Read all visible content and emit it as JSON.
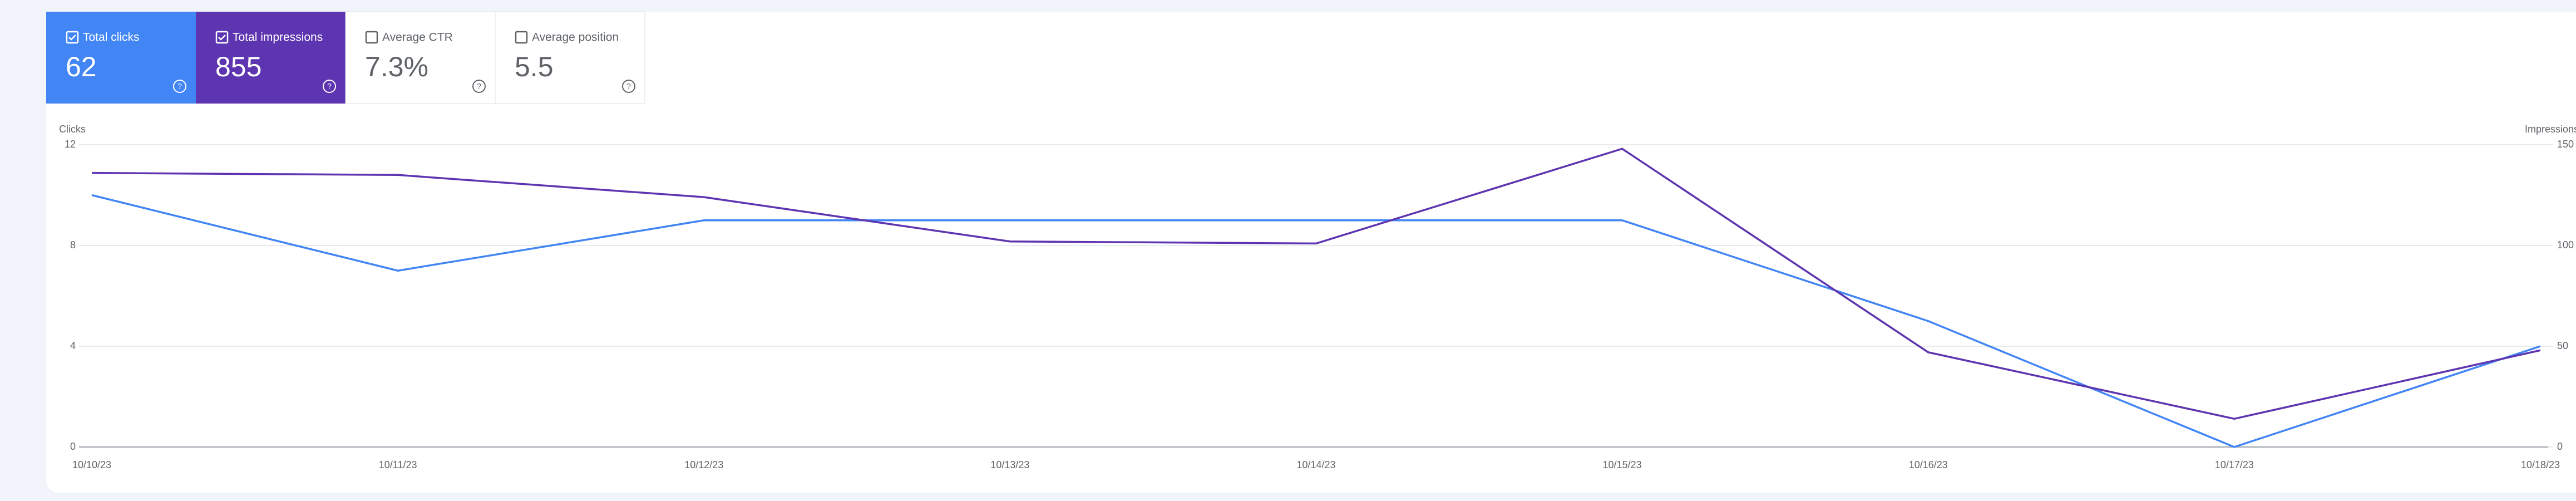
{
  "metrics": [
    {
      "label": "Total clicks",
      "value": "62",
      "checked": true,
      "color": "#4285f4"
    },
    {
      "label": "Total impressions",
      "value": "855",
      "checked": true,
      "color": "#5e35b1"
    },
    {
      "label": "Average CTR",
      "value": "7.3%",
      "checked": false
    },
    {
      "label": "Average position",
      "value": "5.5",
      "checked": false
    }
  ],
  "chart_data": {
    "type": "line",
    "ylabel": "Clicks",
    "y2label": "Impressions",
    "categories": [
      "10/10/23",
      "10/11/23",
      "10/12/23",
      "10/13/23",
      "10/14/23",
      "10/15/23",
      "10/16/23",
      "10/17/23",
      "10/18/23"
    ],
    "series": [
      {
        "name": "Clicks",
        "color": "#4285f4",
        "values": [
          10,
          7,
          9,
          9,
          9,
          9,
          5,
          0,
          4
        ]
      },
      {
        "name": "Impressions",
        "color": "#5e35b1",
        "axis": "y2",
        "values": [
          136,
          135,
          124,
          102,
          101,
          148,
          47,
          14,
          48
        ]
      }
    ],
    "ylim": [
      0,
      12
    ],
    "yticks": [
      0,
      4,
      8,
      12
    ],
    "y2lim": [
      0,
      150
    ],
    "y2ticks": [
      0,
      50,
      100,
      150
    ],
    "grid": true
  }
}
